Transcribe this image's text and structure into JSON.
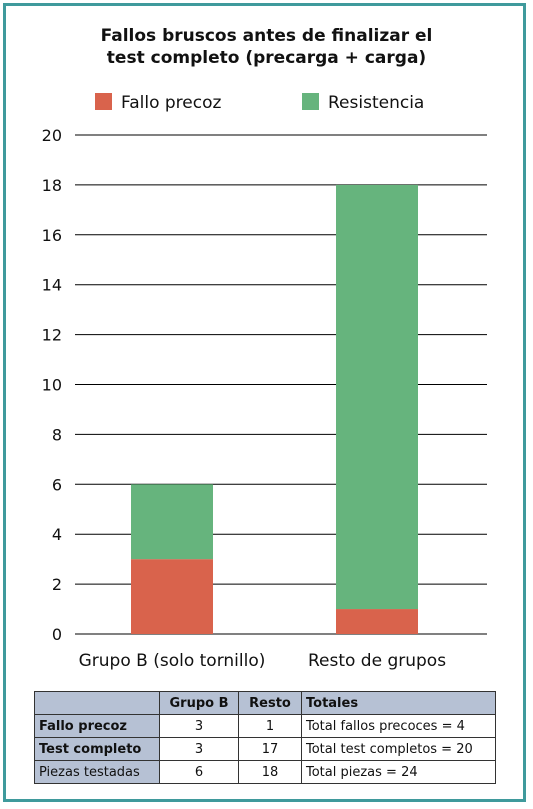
{
  "chart_data": {
    "type": "bar",
    "stacked": true,
    "title_line1": "Fallos bruscos antes de finalizar el",
    "title_line2": "test completo (precarga + carga)",
    "categories": [
      "Grupo B (solo tornillo)",
      "Resto de grupos"
    ],
    "series": [
      {
        "name": "Fallo precoz",
        "values": [
          3,
          1
        ],
        "color": "#d9634c"
      },
      {
        "name": "Resistencia",
        "values": [
          3,
          17
        ],
        "color": "#66b47d"
      }
    ],
    "ylim": [
      0,
      20
    ],
    "yticks": [
      "0",
      "2",
      "4",
      "6",
      "8",
      "10",
      "12",
      "14",
      "16",
      "18",
      "20"
    ],
    "grid": true,
    "legend_position": "top"
  },
  "table": {
    "headers": [
      "",
      "Grupo B",
      "Resto",
      "Totales"
    ],
    "rows": [
      {
        "label": "Fallo precoz",
        "bold": true,
        "b": "3",
        "resto": "1",
        "total": "Total fallos precoces = 4"
      },
      {
        "label": "Test completo",
        "bold": true,
        "b": "3",
        "resto": "17",
        "total": "Total test completos = 20"
      },
      {
        "label": "Piezas testadas",
        "bold": false,
        "b": "6",
        "resto": "18",
        "total": "Total piezas = 24"
      }
    ]
  },
  "colors": {
    "frame": "#3f9a9c",
    "header_fill": "#b6c1d4"
  }
}
